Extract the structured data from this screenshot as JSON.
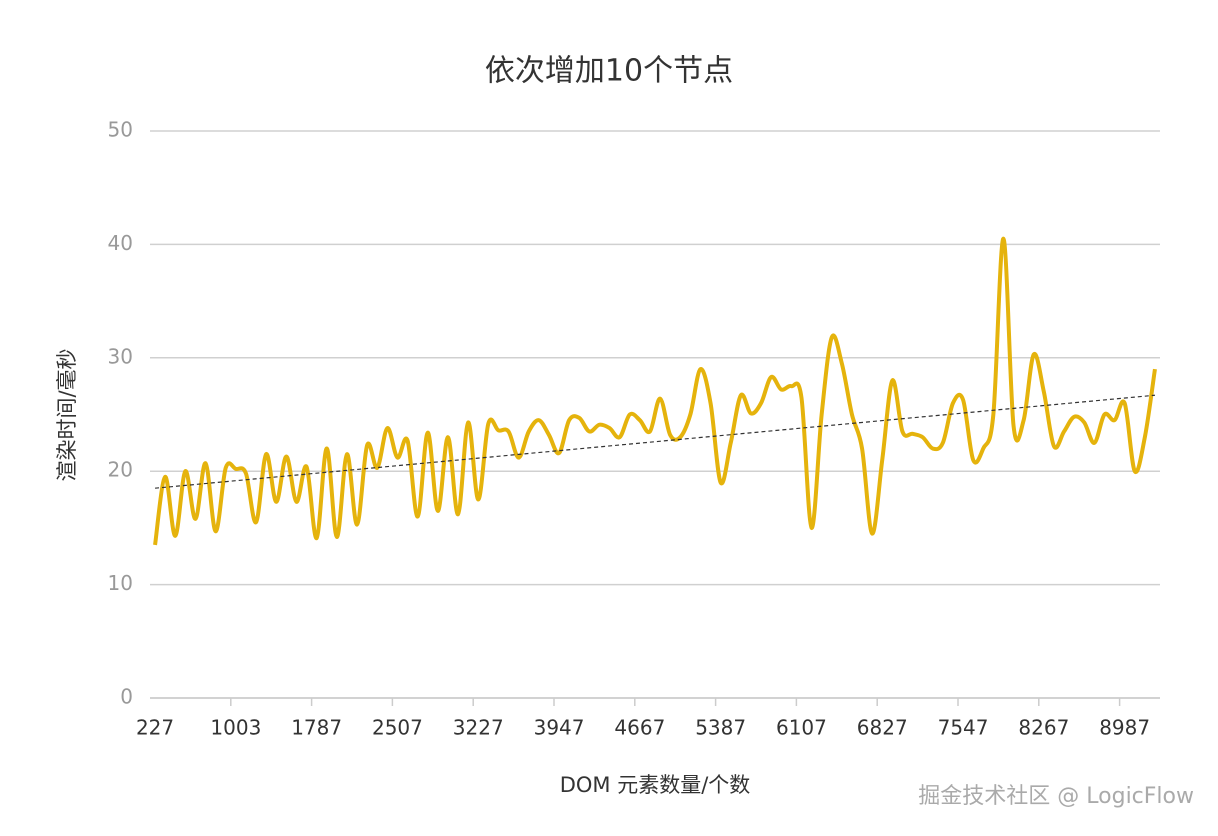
{
  "chart_data": {
    "type": "line",
    "title": "依次增加10个节点",
    "x_label": "DOM 元素数量/个数",
    "y_label": "渲染时间/毫秒",
    "watermark": "掘金技术社区 @ LogicFlow",
    "categories": [
      "227",
      null,
      null,
      null,
      null,
      null,
      null,
      null,
      "1003",
      null,
      null,
      null,
      null,
      null,
      null,
      null,
      "1787",
      null,
      null,
      null,
      null,
      null,
      null,
      null,
      "2507",
      null,
      null,
      null,
      null,
      null,
      null,
      null,
      "3227",
      null,
      null,
      null,
      null,
      null,
      null,
      null,
      "3947",
      null,
      null,
      null,
      null,
      null,
      null,
      null,
      "4667",
      null,
      null,
      null,
      null,
      null,
      null,
      null,
      "5387",
      null,
      null,
      null,
      null,
      null,
      null,
      null,
      "6107",
      null,
      null,
      null,
      null,
      null,
      null,
      null,
      "6827",
      null,
      null,
      null,
      null,
      null,
      null,
      null,
      "7547",
      null,
      null,
      null,
      null,
      null,
      null,
      null,
      "8267",
      null,
      null,
      null,
      null,
      null,
      null,
      null,
      "8987",
      null,
      null,
      null
    ],
    "values": [
      13.5,
      19.5,
      14.3,
      20,
      15.8,
      20.7,
      14.7,
      20.3,
      20.2,
      19.8,
      15.5,
      21.5,
      17.3,
      21.3,
      17.3,
      20.4,
      14.1,
      22,
      14.2,
      21.5,
      15.3,
      22.3,
      20.3,
      23.8,
      21.2,
      22.7,
      16,
      23.4,
      16.5,
      23,
      16.2,
      24.3,
      17.5,
      24.2,
      23.6,
      23.5,
      21.2,
      23.5,
      24.5,
      23.2,
      21.6,
      24.5,
      24.7,
      23.5,
      24.1,
      23.8,
      23,
      25,
      24.5,
      23.5,
      26.4,
      23.2,
      23,
      25,
      29,
      26,
      19,
      22.5,
      26.7,
      25.1,
      26,
      28.3,
      27.2,
      27.5,
      26.5,
      15,
      25,
      31.8,
      29.5,
      25,
      22,
      14.5,
      21,
      28,
      23.5,
      23.3,
      23,
      22,
      22.5,
      26,
      26.3,
      21,
      22,
      25,
      40.5,
      24,
      24.5,
      30.3,
      27,
      22.2,
      23.5,
      24.8,
      24.3,
      22.5,
      25,
      24.5,
      26,
      20,
      23,
      29
    ],
    "color": "#e5b30c",
    "trendline": {
      "values": [
        18.5,
        26.7
      ],
      "color": "#333333"
    },
    "ylim": [
      0,
      50
    ],
    "yticks": [
      0,
      10,
      20,
      30,
      40,
      50
    ],
    "grid": true
  }
}
